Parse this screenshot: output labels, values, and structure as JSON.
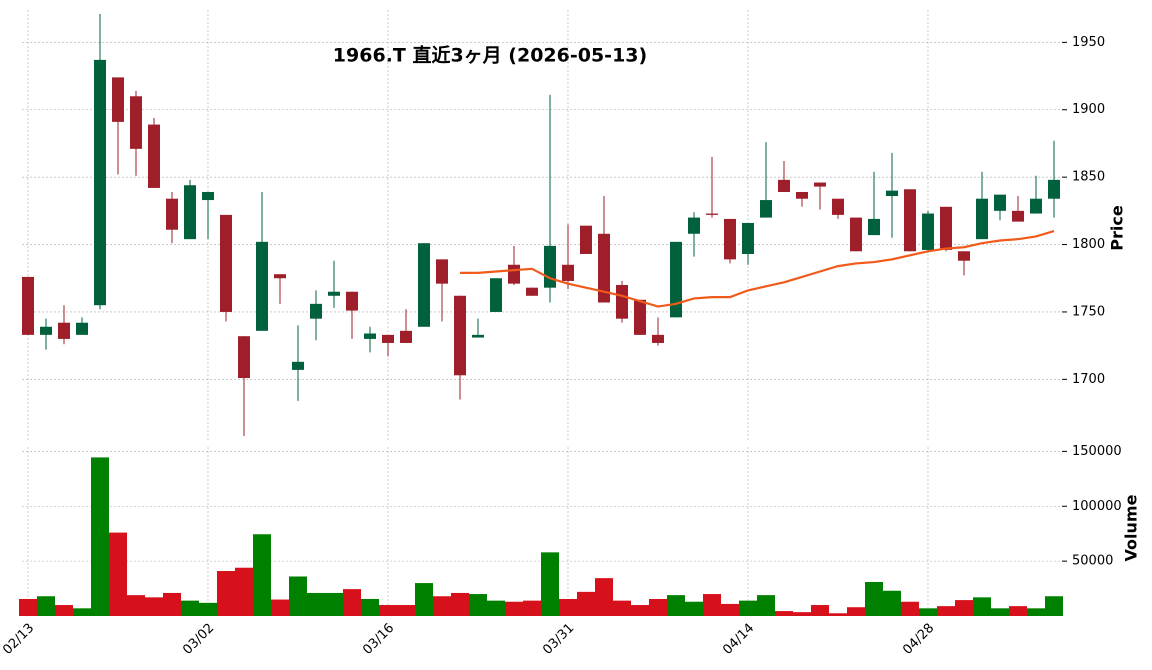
{
  "chart_data": {
    "type": "candlestick",
    "title": "1966.T  直近3ヶ月  (2026-05-13)",
    "categories": [
      "02/13",
      null,
      null,
      null,
      null,
      null,
      null,
      null,
      null,
      null,
      "03/02",
      null,
      null,
      null,
      null,
      null,
      null,
      null,
      null,
      null,
      "03/16",
      null,
      null,
      null,
      null,
      null,
      null,
      null,
      null,
      null,
      "03/31",
      null,
      null,
      null,
      null,
      null,
      null,
      null,
      null,
      null,
      "04/14",
      null,
      null,
      null,
      null,
      null,
      null,
      null,
      null,
      null,
      "04/28",
      null,
      null,
      null,
      null,
      null,
      null,
      null
    ],
    "open": [
      1776,
      1733,
      1742,
      1733,
      1755,
      1924,
      1910,
      1889,
      1834,
      1804,
      1833,
      1822,
      1732,
      1736,
      1778,
      1707,
      1745,
      1762,
      1765,
      1730,
      1733,
      1736,
      1739,
      1789,
      1762,
      1731,
      1750,
      1785,
      1768,
      1768,
      1785,
      1814,
      1808,
      1770,
      1759,
      1733,
      1746,
      1808,
      1823,
      1819,
      1793,
      1820,
      1848,
      1839,
      1846,
      1834,
      1820,
      1807,
      1836,
      1841,
      1796,
      1828,
      1795,
      1804,
      1825,
      1825,
      1823,
      1834
    ],
    "high": [
      1776,
      1745,
      1755,
      1746,
      1971,
      1924,
      1914,
      1894,
      1839,
      1848,
      1839,
      1822,
      1732,
      1839,
      1778,
      1740,
      1766,
      1788,
      1765,
      1739,
      1733,
      1752,
      1801,
      1789,
      1762,
      1745,
      1775,
      1799,
      1768,
      1911,
      1815,
      1814,
      1836,
      1773,
      1759,
      1746,
      1802,
      1824,
      1865,
      1819,
      1816,
      1876,
      1862,
      1839,
      1846,
      1834,
      1820,
      1854,
      1868,
      1841,
      1825,
      1828,
      1795,
      1854,
      1837,
      1836,
      1851,
      1877
    ],
    "low": [
      1733,
      1722,
      1726,
      1733,
      1752,
      1852,
      1851,
      1842,
      1801,
      1804,
      1804,
      1743,
      1658,
      1736,
      1756,
      1684,
      1729,
      1753,
      1730,
      1720,
      1717,
      1727,
      1739,
      1743,
      1685,
      1731,
      1750,
      1770,
      1762,
      1757,
      1767,
      1793,
      1757,
      1742,
      1733,
      1725,
      1746,
      1791,
      1820,
      1786,
      1785,
      1820,
      1839,
      1828,
      1826,
      1819,
      1795,
      1807,
      1805,
      1795,
      1794,
      1795,
      1777,
      1804,
      1818,
      1817,
      1823,
      1820
    ],
    "close": [
      1733,
      1739,
      1730,
      1742,
      1937,
      1891,
      1871,
      1842,
      1811,
      1844,
      1839,
      1750,
      1701,
      1802,
      1775,
      1713,
      1756,
      1765,
      1751,
      1734,
      1727,
      1727,
      1801,
      1771,
      1703,
      1733,
      1775,
      1771,
      1762,
      1799,
      1773,
      1793,
      1757,
      1745,
      1733,
      1727,
      1802,
      1820,
      1822,
      1789,
      1816,
      1833,
      1839,
      1834,
      1843,
      1822,
      1795,
      1819,
      1840,
      1795,
      1823,
      1796,
      1788,
      1834,
      1837,
      1817,
      1834,
      1848
    ],
    "up_color": "#00613c",
    "down_color": "#9e1f29",
    "ma": {
      "color": "#f05a1a",
      "values": [
        null,
        null,
        null,
        null,
        null,
        null,
        null,
        null,
        null,
        null,
        null,
        null,
        null,
        null,
        null,
        null,
        null,
        null,
        null,
        null,
        null,
        null,
        null,
        null,
        1779,
        1779,
        1780,
        1781,
        1782,
        1775,
        1771,
        1768,
        1765,
        1762,
        1758,
        1754,
        1756,
        1760,
        1761,
        1761,
        1766,
        1769,
        1772,
        1776,
        1780,
        1784,
        1786,
        1787,
        1789,
        1792,
        1795,
        1797,
        1798,
        1801,
        1803,
        1804,
        1806,
        1810
      ]
    },
    "ylim": [
      1655,
      1974
    ],
    "yticks": [
      1700,
      1750,
      1800,
      1850,
      1900,
      1950
    ],
    "ylabel": "Price",
    "grid": true,
    "volume": {
      "ylabel": "Volume",
      "up_color": "#008000",
      "down_color": "#d7111b",
      "ylim": [
        0,
        154000
      ],
      "yticks": [
        50000,
        100000,
        150000
      ],
      "values": [
        15500,
        18000,
        10000,
        7000,
        144500,
        76000,
        19000,
        17000,
        21000,
        14000,
        12000,
        41000,
        44000,
        74500,
        15000,
        36000,
        21000,
        21000,
        24500,
        15500,
        10000,
        10000,
        30000,
        18000,
        21000,
        20000,
        14000,
        13000,
        14000,
        58000,
        15500,
        22000,
        34500,
        14000,
        10000,
        15500,
        19000,
        13000,
        20000,
        11000,
        14000,
        19000,
        4500,
        3500,
        10000,
        2500,
        8000,
        31000,
        23000,
        13000,
        7000,
        9000,
        14500,
        17000,
        7000,
        9000,
        7000,
        18000
      ]
    }
  }
}
